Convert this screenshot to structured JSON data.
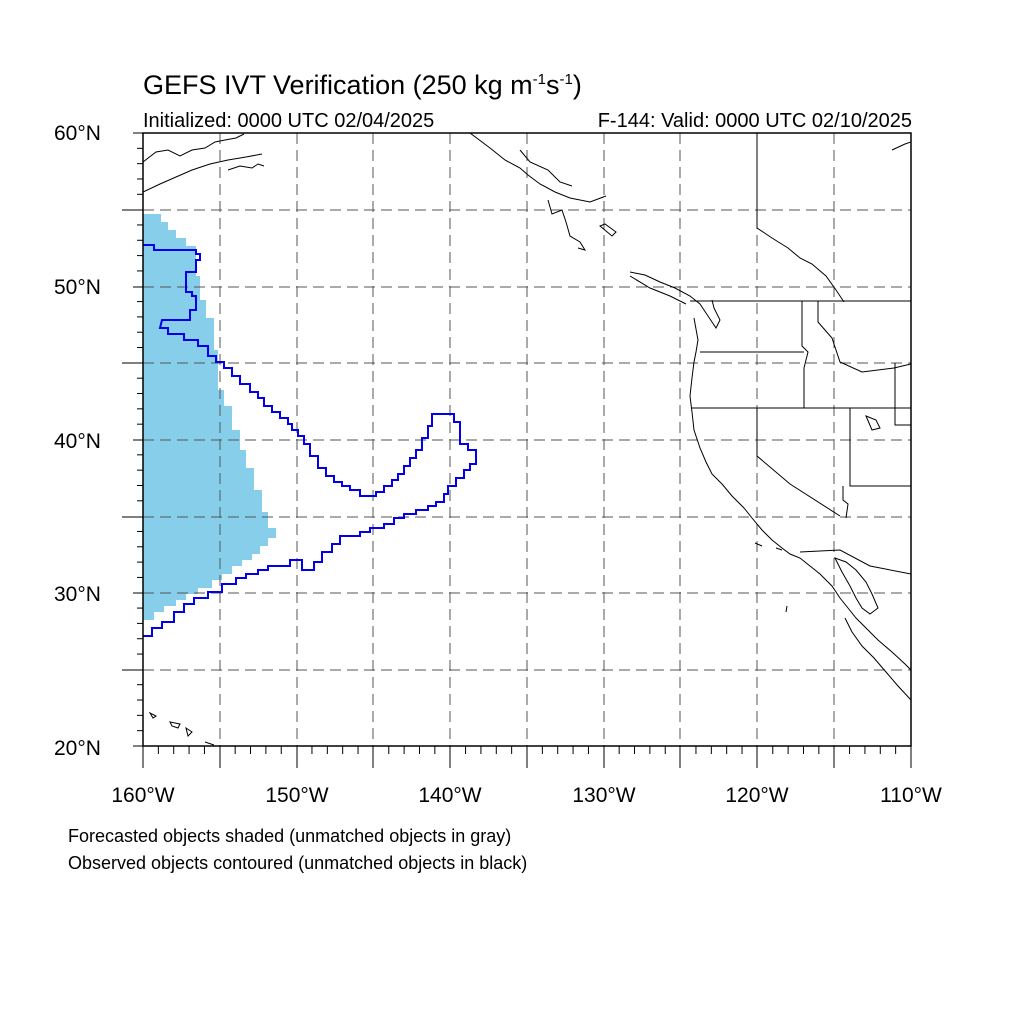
{
  "header": {
    "title_main": "GEFS IVT Verification (250 kg m",
    "title_exp1": "-1",
    "title_mid": "s",
    "title_exp2": "-1",
    "title_end": ")",
    "initialized": "Initialized: 0000 UTC 02/04/2025",
    "valid": "F-144: Valid: 0000 UTC 02/10/2025"
  },
  "axes": {
    "lat_labels": [
      "60°N",
      "50°N",
      "40°N",
      "30°N",
      "20°N"
    ],
    "lon_labels": [
      "160°W",
      "150°W",
      "140°W",
      "130°W",
      "120°W",
      "110°W"
    ],
    "lat_range": [
      20,
      60
    ],
    "lon_range": [
      -160,
      -110
    ]
  },
  "legend": {
    "line1": "Forecasted objects shaded (unmatched objects in gray)",
    "line2": "Observed objects contoured (unmatched objects in black)"
  },
  "colors": {
    "forecast_fill": "#87ceeb",
    "observed_contour": "#0000ee",
    "coast": "#000000",
    "grid": "#555555"
  }
}
